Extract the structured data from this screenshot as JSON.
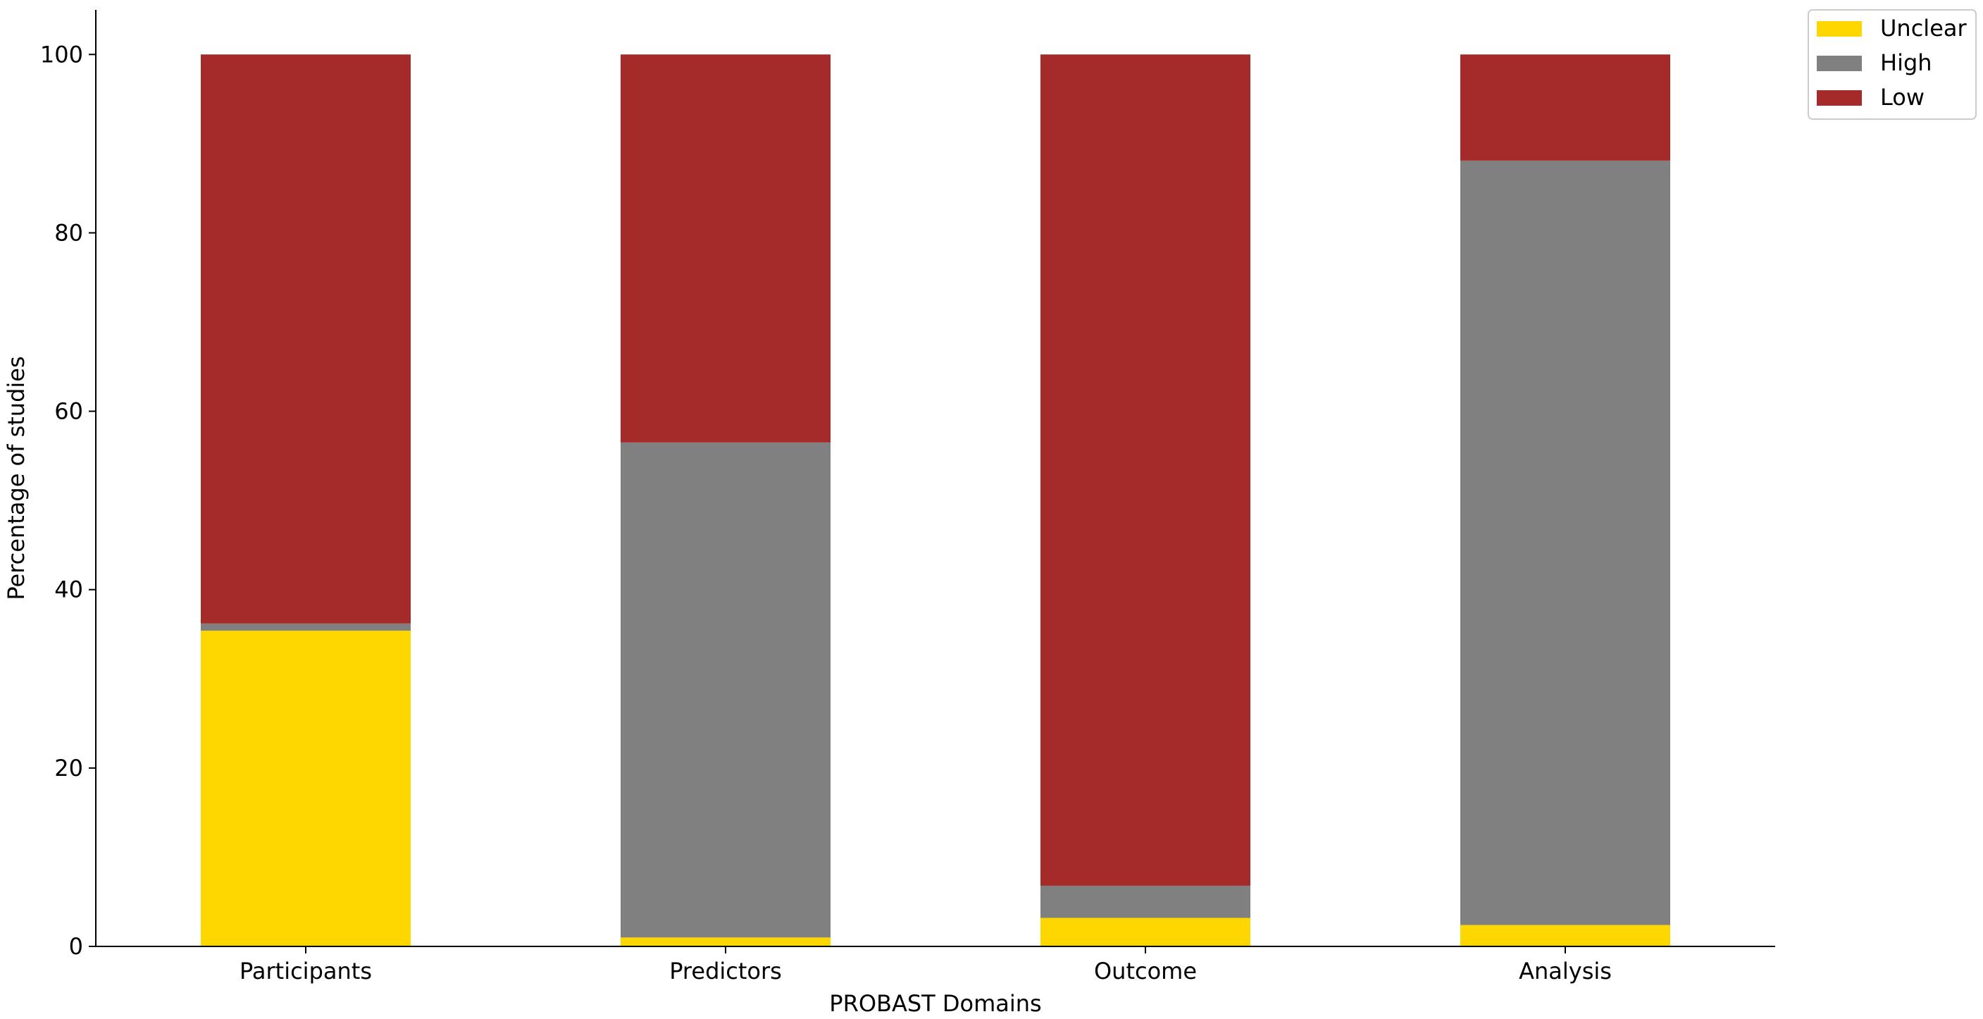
{
  "chart_data": {
    "type": "bar",
    "stacked": true,
    "xlabel": "PROBAST Domains",
    "ylabel": "Percentage of studies",
    "categories": [
      "Participants",
      "Predictors",
      "Outcome",
      "Analysis"
    ],
    "series": [
      {
        "name": "Unclear",
        "color": "#FFD700",
        "values": [
          35.4,
          1.0,
          3.2,
          2.4
        ]
      },
      {
        "name": "High",
        "color": "#808080",
        "values": [
          0.8,
          55.5,
          3.6,
          85.7
        ]
      },
      {
        "name": "Low",
        "color": "#A52A2A",
        "values": [
          63.8,
          43.5,
          93.2,
          11.9
        ]
      }
    ],
    "ylim": [
      0,
      105
    ],
    "yticks": [
      0,
      20,
      40,
      60,
      80,
      100
    ],
    "grid": false,
    "legend": {
      "position": "top-right outside",
      "order": [
        "Unclear",
        "High",
        "Low"
      ]
    }
  }
}
